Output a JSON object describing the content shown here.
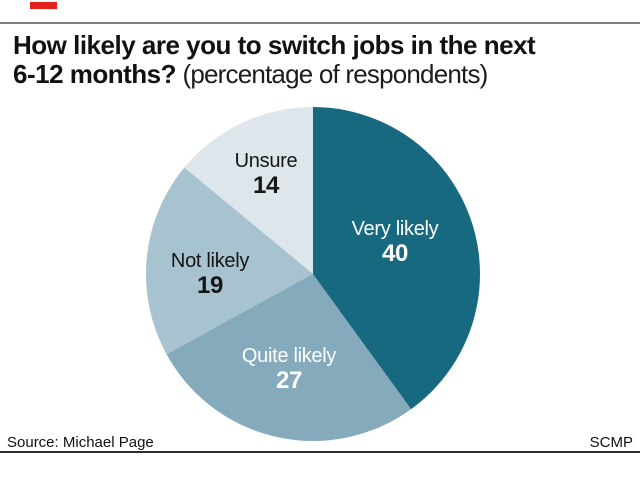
{
  "header": {
    "accent_color": "#e32119",
    "title_line1": "How likely are you to switch jobs in the next",
    "title_line2_bold": "6-12 months?",
    "title_line2_regular": " (percentage of respondents)"
  },
  "chart_data": {
    "type": "pie",
    "title": "How likely are you to switch jobs in the next 6-12 months?",
    "subtitle": "percentage of respondents",
    "unit": "percent",
    "start_angle_deg": 0,
    "direction": "clockwise",
    "label_position": "inside",
    "total": 100,
    "slices": [
      {
        "label": "Very likely",
        "value": 40,
        "color": "#17697f",
        "text_color": "#ffffff"
      },
      {
        "label": "Quite likely",
        "value": 27,
        "color": "#84aabb",
        "text_color": "#ffffff"
      },
      {
        "label": "Not likely",
        "value": 19,
        "color": "#a8c3d0",
        "text_color": "#151515"
      },
      {
        "label": "Unsure",
        "value": 14,
        "color": "#dce6eb",
        "text_color": "#151515"
      }
    ]
  },
  "footer": {
    "source": "Source: Michael Page",
    "credit": "SCMP"
  }
}
